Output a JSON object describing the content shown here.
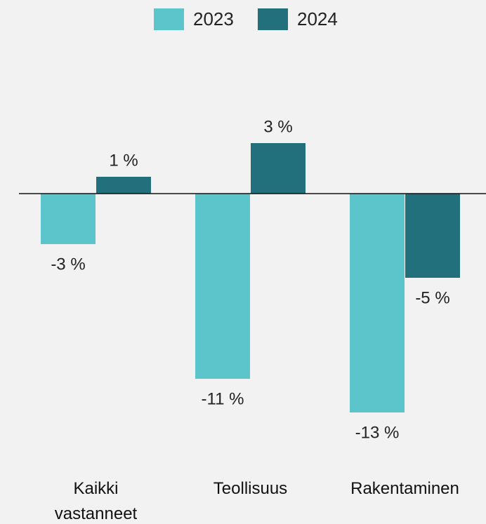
{
  "chart_data": {
    "type": "bar",
    "categories": [
      "Kaikki vastanneet",
      "Teollisuus",
      "Rakentaminen"
    ],
    "series": [
      {
        "name": "2023",
        "color": "#5bc5cb",
        "values": [
          -3,
          -11,
          -13
        ],
        "value_labels": [
          "-3 %",
          "-11 %",
          "-13 %"
        ]
      },
      {
        "name": "2024",
        "color": "#22707c",
        "values": [
          1,
          3,
          -5
        ],
        "value_labels": [
          "1 %",
          "3 %",
          "-5 %"
        ]
      }
    ],
    "ylim": [
      -15,
      5
    ],
    "legend": "top"
  }
}
